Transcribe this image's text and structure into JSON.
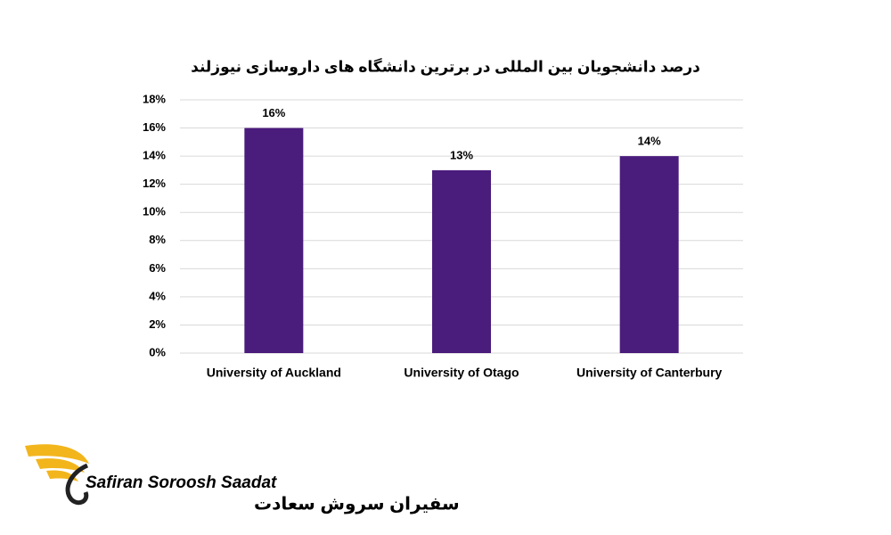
{
  "chart_data": {
    "type": "bar",
    "title": "درصد دانشجویان بین المللی در برترین دانشگاه های داروسازی نیوزلند",
    "categories": [
      "University of Auckland",
      "University of Otago",
      "University of Canterbury"
    ],
    "values": [
      16,
      13,
      14
    ],
    "value_labels": [
      "16%",
      "13%",
      "14%"
    ],
    "color": "#4a1c7c",
    "ylim": [
      0,
      18
    ],
    "yticks": [
      {
        "value": 0,
        "label": "0%"
      },
      {
        "value": 2,
        "label": "2%"
      },
      {
        "value": 4,
        "label": "4%"
      },
      {
        "value": 6,
        "label": "6%"
      },
      {
        "value": 8,
        "label": "8%"
      },
      {
        "value": 10,
        "label": "10%"
      },
      {
        "value": 12,
        "label": "12%"
      },
      {
        "value": 14,
        "label": "14%"
      },
      {
        "value": 16,
        "label": "16%"
      },
      {
        "value": 18,
        "label": "18%"
      }
    ],
    "grid": true
  },
  "logo": {
    "name_en": "Safiran Soroosh Saadat",
    "name_fa": "سفیران سروش سعادت"
  }
}
